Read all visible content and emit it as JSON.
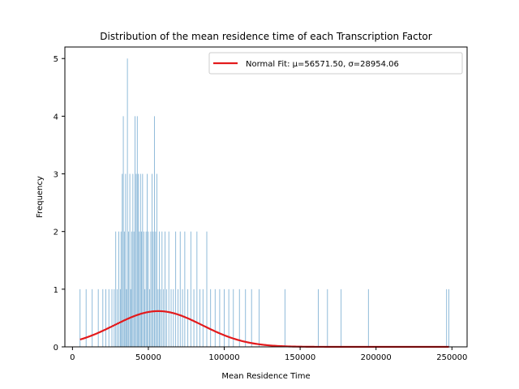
{
  "chart_data": {
    "type": "histogram",
    "title": "Distribution of the mean residence time of each Transcription Factor",
    "xlabel": "Mean Residence Time",
    "ylabel": "Frequency",
    "xlim": [
      -5000,
      260000
    ],
    "ylim": [
      0,
      5.2
    ],
    "x_ticks": [
      0,
      50000,
      100000,
      150000,
      200000,
      250000
    ],
    "x_tick_labels": [
      "0",
      "50000",
      "100000",
      "150000",
      "200000",
      "250000"
    ],
    "y_ticks": [
      0,
      1,
      2,
      3,
      4,
      5
    ],
    "y_tick_labels": [
      "0",
      "1",
      "2",
      "3",
      "4",
      "5"
    ],
    "grid": false,
    "legend_position": "top-right",
    "bar_color": "#1f77b4",
    "fit_color": "#e31a1c",
    "histogram_bars": [
      {
        "x": 5000,
        "count": 1
      },
      {
        "x": 9000,
        "count": 1
      },
      {
        "x": 13000,
        "count": 1
      },
      {
        "x": 17000,
        "count": 1
      },
      {
        "x": 20000,
        "count": 1
      },
      {
        "x": 22000,
        "count": 1
      },
      {
        "x": 24000,
        "count": 1
      },
      {
        "x": 26000,
        "count": 1
      },
      {
        "x": 27500,
        "count": 1
      },
      {
        "x": 28500,
        "count": 2
      },
      {
        "x": 29500,
        "count": 1
      },
      {
        "x": 30500,
        "count": 2
      },
      {
        "x": 31500,
        "count": 1
      },
      {
        "x": 32000,
        "count": 2
      },
      {
        "x": 32800,
        "count": 3
      },
      {
        "x": 33500,
        "count": 4
      },
      {
        "x": 34200,
        "count": 2
      },
      {
        "x": 35000,
        "count": 3
      },
      {
        "x": 35600,
        "count": 1
      },
      {
        "x": 36200,
        "count": 5
      },
      {
        "x": 37000,
        "count": 2
      },
      {
        "x": 37800,
        "count": 3
      },
      {
        "x": 38400,
        "count": 1
      },
      {
        "x": 39000,
        "count": 2
      },
      {
        "x": 39800,
        "count": 3
      },
      {
        "x": 40500,
        "count": 2
      },
      {
        "x": 41200,
        "count": 4
      },
      {
        "x": 42000,
        "count": 3
      },
      {
        "x": 42700,
        "count": 4
      },
      {
        "x": 43400,
        "count": 3
      },
      {
        "x": 44100,
        "count": 2
      },
      {
        "x": 44800,
        "count": 3
      },
      {
        "x": 45500,
        "count": 2
      },
      {
        "x": 46200,
        "count": 3
      },
      {
        "x": 47000,
        "count": 2
      },
      {
        "x": 47700,
        "count": 1
      },
      {
        "x": 48500,
        "count": 2
      },
      {
        "x": 49200,
        "count": 3
      },
      {
        "x": 50000,
        "count": 2
      },
      {
        "x": 50800,
        "count": 1
      },
      {
        "x": 51600,
        "count": 2
      },
      {
        "x": 52400,
        "count": 3
      },
      {
        "x": 53200,
        "count": 2
      },
      {
        "x": 54000,
        "count": 4
      },
      {
        "x": 54800,
        "count": 2
      },
      {
        "x": 55600,
        "count": 3
      },
      {
        "x": 56400,
        "count": 1
      },
      {
        "x": 57200,
        "count": 2
      },
      {
        "x": 58000,
        "count": 1
      },
      {
        "x": 59000,
        "count": 2
      },
      {
        "x": 60000,
        "count": 1
      },
      {
        "x": 61000,
        "count": 2
      },
      {
        "x": 62000,
        "count": 1
      },
      {
        "x": 63500,
        "count": 2
      },
      {
        "x": 65000,
        "count": 1
      },
      {
        "x": 66500,
        "count": 1
      },
      {
        "x": 68000,
        "count": 2
      },
      {
        "x": 69500,
        "count": 1
      },
      {
        "x": 71000,
        "count": 2
      },
      {
        "x": 72500,
        "count": 1
      },
      {
        "x": 74000,
        "count": 2
      },
      {
        "x": 76000,
        "count": 1
      },
      {
        "x": 78000,
        "count": 2
      },
      {
        "x": 80000,
        "count": 1
      },
      {
        "x": 82000,
        "count": 2
      },
      {
        "x": 84000,
        "count": 1
      },
      {
        "x": 86000,
        "count": 1
      },
      {
        "x": 88500,
        "count": 2
      },
      {
        "x": 91000,
        "count": 1
      },
      {
        "x": 94000,
        "count": 1
      },
      {
        "x": 97000,
        "count": 1
      },
      {
        "x": 100000,
        "count": 1
      },
      {
        "x": 103000,
        "count": 1
      },
      {
        "x": 106000,
        "count": 1
      },
      {
        "x": 110000,
        "count": 1
      },
      {
        "x": 114000,
        "count": 1
      },
      {
        "x": 118000,
        "count": 1
      },
      {
        "x": 123000,
        "count": 1
      },
      {
        "x": 140000,
        "count": 1
      },
      {
        "x": 162000,
        "count": 1
      },
      {
        "x": 168000,
        "count": 1
      },
      {
        "x": 177000,
        "count": 1
      },
      {
        "x": 195000,
        "count": 1
      },
      {
        "x": 246500,
        "count": 1
      },
      {
        "x": 248000,
        "count": 1
      }
    ],
    "series": [
      {
        "name": "Normal Fit: μ=56571.50, σ=28954.06",
        "type": "line",
        "mu": 56571.5,
        "sigma": 28954.06,
        "peak": 0.62,
        "x_range": [
          5000,
          248000
        ]
      }
    ]
  }
}
